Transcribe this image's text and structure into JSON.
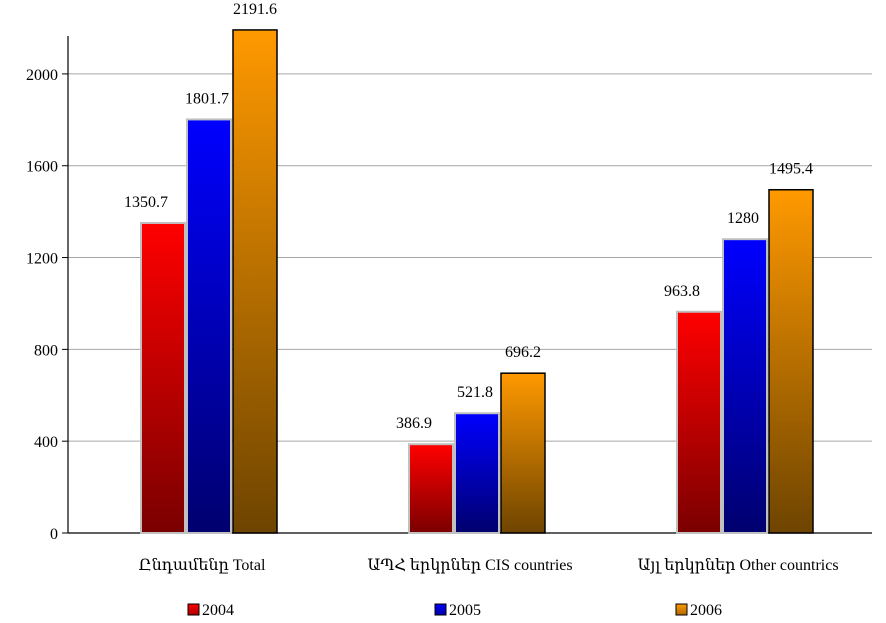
{
  "chart_data": {
    "type": "bar",
    "categories": [
      "Ընդամենը Total",
      "ԱՊՀ երկրներ CIS countries",
      "Այլ երկրներ Other countrics"
    ],
    "series": [
      {
        "name": "2004",
        "values": [
          1350.7,
          386.9,
          963.8
        ],
        "labels": [
          "1350.7",
          "386.9",
          "963.8"
        ],
        "color": "#ff0000"
      },
      {
        "name": "2005",
        "values": [
          1801.7,
          521.8,
          1280
        ],
        "labels": [
          "1801.7",
          "521.8",
          "1280"
        ],
        "color": "#0000ff"
      },
      {
        "name": "2006",
        "values": [
          2191.6,
          696.2,
          1495.4
        ],
        "labels": [
          "2191.6",
          "696.2",
          "1495.4"
        ],
        "color": "#ff9900"
      }
    ],
    "yticks": [
      "0",
      "400",
      "800",
      "1200",
      "1600",
      "2000"
    ],
    "ylim": [
      0,
      2200
    ],
    "title": "",
    "xlabel": "",
    "ylabel": "",
    "grid": true,
    "legend_position": "bottom"
  }
}
